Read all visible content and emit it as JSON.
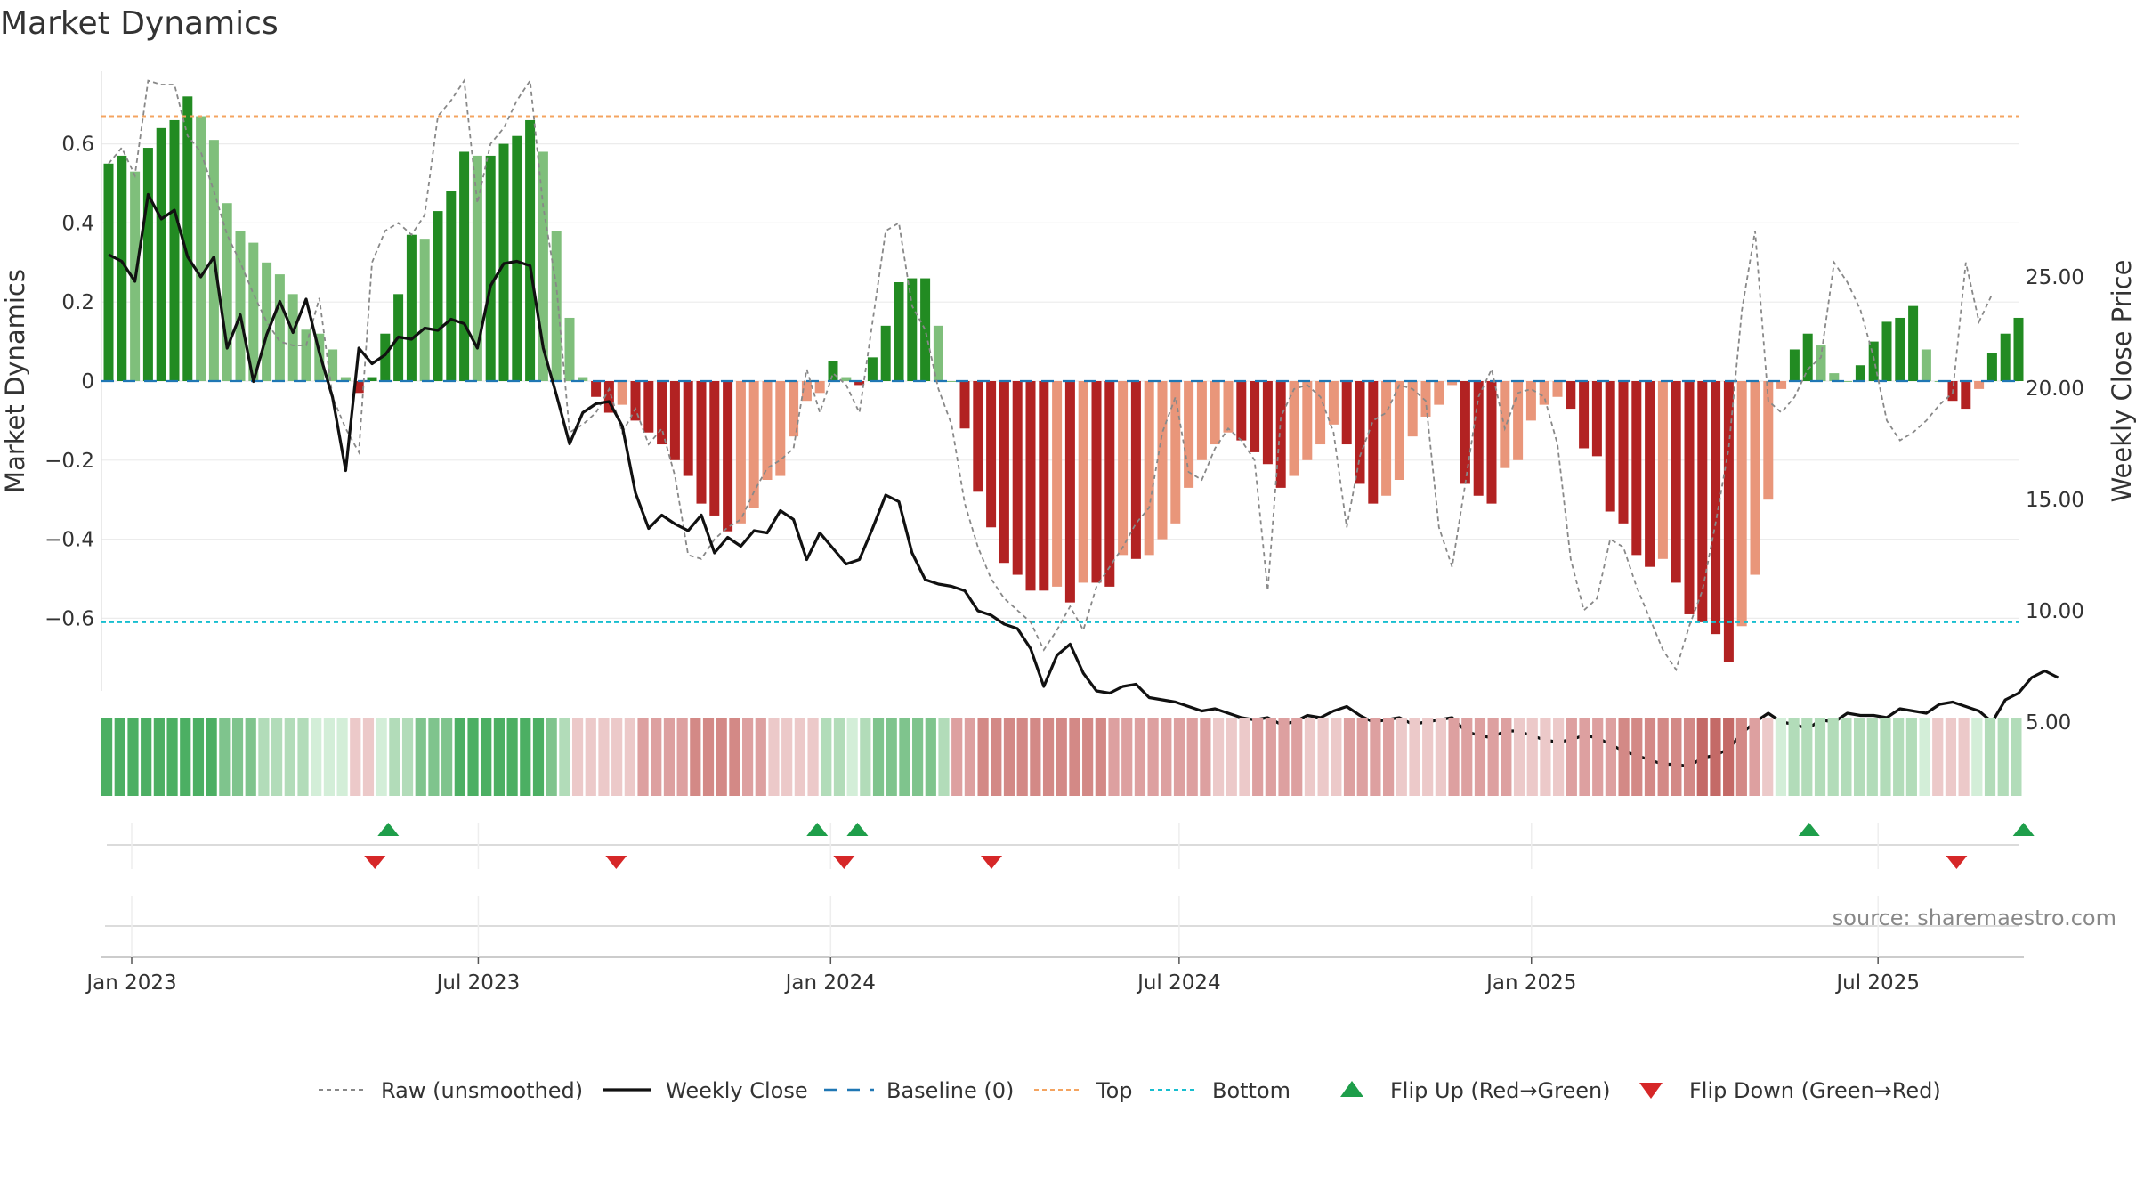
{
  "chart_data": {
    "type": "bar",
    "title": "Market Dynamics",
    "ylabel": "Market Dynamics",
    "y2label": "Weekly Close Price",
    "ylim": [
      -0.78,
      0.78
    ],
    "y2lim": [
      0,
      30
    ],
    "yticks": [
      {
        "v": 0.6,
        "t": "0.6"
      },
      {
        "v": 0.4,
        "t": "0.4"
      },
      {
        "v": 0.2,
        "t": "0.2"
      },
      {
        "v": 0,
        "t": "0"
      },
      {
        "v": -0.2,
        "t": "−0.2"
      },
      {
        "v": -0.4,
        "t": "−0.4"
      },
      {
        "v": -0.6,
        "t": "−0.6"
      }
    ],
    "y2ticks": [
      {
        "v": 25,
        "t": "25.00"
      },
      {
        "v": 20,
        "t": "20.00"
      },
      {
        "v": 15,
        "t": "15.00"
      },
      {
        "v": 10,
        "t": "10.00"
      },
      {
        "v": 5,
        "t": "5.00"
      }
    ],
    "xticks": [
      {
        "date": "2023-01-01",
        "t": "Jan 2023"
      },
      {
        "date": "2023-07-01",
        "t": "Jul 2023"
      },
      {
        "date": "2024-01-01",
        "t": "Jan 2024"
      },
      {
        "date": "2024-07-01",
        "t": "Jul 2024"
      },
      {
        "date": "2025-01-01",
        "t": "Jan 2025"
      },
      {
        "date": "2025-07-01",
        "t": "Jul 2025"
      }
    ],
    "top_line": 0.67,
    "bottom_line": -0.61,
    "baseline": 0,
    "start_date": "2022-12-19",
    "dynamics": [
      0.55,
      0.57,
      0.53,
      0.59,
      0.64,
      0.66,
      0.72,
      0.67,
      0.61,
      0.45,
      0.38,
      0.35,
      0.3,
      0.27,
      0.22,
      0.13,
      0.12,
      0.08,
      0.01,
      -0.03,
      0.01,
      0.12,
      0.22,
      0.37,
      0.36,
      0.43,
      0.48,
      0.58,
      0.57,
      0.57,
      0.6,
      0.62,
      0.66,
      0.58,
      0.38,
      0.16,
      0.01,
      -0.04,
      -0.08,
      -0.06,
      -0.1,
      -0.13,
      -0.16,
      -0.2,
      -0.24,
      -0.31,
      -0.34,
      -0.38,
      -0.36,
      -0.32,
      -0.25,
      -0.24,
      -0.14,
      -0.05,
      -0.03,
      0.05,
      0.01,
      -0.01,
      0.06,
      0.14,
      0.25,
      0.26,
      0.26,
      0.14,
      0.0,
      -0.12,
      -0.28,
      -0.37,
      -0.46,
      -0.49,
      -0.53,
      -0.53,
      -0.52,
      -0.56,
      -0.51,
      -0.51,
      -0.52,
      -0.44,
      -0.45,
      -0.44,
      -0.4,
      -0.36,
      -0.27,
      -0.2,
      -0.16,
      -0.13,
      -0.15,
      -0.18,
      -0.21,
      -0.27,
      -0.24,
      -0.2,
      -0.16,
      -0.11,
      -0.16,
      -0.26,
      -0.31,
      -0.29,
      -0.25,
      -0.14,
      -0.09,
      -0.06,
      -0.01,
      -0.26,
      -0.29,
      -0.31,
      -0.22,
      -0.2,
      -0.1,
      -0.06,
      -0.04,
      -0.07,
      -0.17,
      -0.19,
      -0.33,
      -0.36,
      -0.44,
      -0.47,
      -0.45,
      -0.51,
      -0.59,
      -0.61,
      -0.64,
      -0.71,
      -0.62,
      -0.49,
      -0.3,
      -0.02,
      0.08,
      0.12,
      0.09,
      0.02,
      0.0,
      0.04,
      0.1,
      0.15,
      0.16,
      0.19,
      0.08,
      0.0,
      -0.05,
      -0.07,
      -0.02,
      0.07,
      0.12,
      0.16
    ],
    "raw": [
      0.55,
      0.59,
      0.52,
      0.76,
      0.75,
      0.75,
      0.62,
      0.58,
      0.48,
      0.37,
      0.3,
      0.22,
      0.15,
      0.1,
      0.09,
      0.09,
      0.21,
      -0.04,
      -0.12,
      -0.18,
      0.3,
      0.38,
      0.4,
      0.37,
      0.42,
      0.67,
      0.71,
      0.76,
      0.45,
      0.6,
      0.64,
      0.71,
      0.76,
      0.44,
      0.24,
      -0.13,
      -0.11,
      -0.08,
      -0.02,
      -0.13,
      -0.07,
      -0.16,
      -0.12,
      -0.24,
      -0.44,
      -0.45,
      -0.4,
      -0.37,
      -0.35,
      -0.28,
      -0.22,
      -0.2,
      -0.17,
      0.03,
      -0.08,
      0.02,
      -0.01,
      -0.08,
      0.15,
      0.38,
      0.4,
      0.19,
      0.13,
      -0.02,
      -0.11,
      -0.31,
      -0.42,
      -0.5,
      -0.55,
      -0.58,
      -0.61,
      -0.68,
      -0.63,
      -0.57,
      -0.63,
      -0.52,
      -0.47,
      -0.42,
      -0.36,
      -0.32,
      -0.13,
      -0.04,
      -0.23,
      -0.25,
      -0.17,
      -0.12,
      -0.15,
      -0.2,
      -0.53,
      -0.09,
      -0.02,
      -0.01,
      -0.04,
      -0.13,
      -0.37,
      -0.19,
      -0.1,
      -0.08,
      -0.01,
      -0.02,
      -0.05,
      -0.37,
      -0.47,
      -0.26,
      -0.04,
      0.03,
      -0.12,
      -0.03,
      -0.02,
      -0.04,
      -0.16,
      -0.45,
      -0.58,
      -0.55,
      -0.4,
      -0.42,
      -0.52,
      -0.6,
      -0.68,
      -0.73,
      -0.62,
      -0.53,
      -0.36,
      -0.17,
      0.18,
      0.38,
      -0.05,
      -0.08,
      -0.04,
      0.03,
      0.06,
      0.3,
      0.25,
      0.18,
      0.06,
      -0.1,
      -0.15,
      -0.13,
      -0.1,
      -0.06,
      -0.03,
      0.3,
      0.15,
      0.22
    ],
    "close": [
      26.0,
      25.7,
      24.8,
      28.7,
      27.6,
      28.0,
      25.9,
      25.0,
      25.9,
      21.8,
      23.3,
      20.3,
      22.4,
      23.9,
      22.5,
      24.0,
      21.6,
      19.6,
      16.3,
      21.8,
      21.1,
      21.5,
      22.3,
      22.2,
      22.7,
      22.6,
      23.1,
      22.9,
      21.8,
      24.6,
      25.6,
      25.7,
      25.5,
      21.8,
      19.7,
      17.5,
      18.9,
      19.3,
      19.4,
      18.3,
      15.3,
      13.7,
      14.3,
      13.9,
      13.6,
      14.3,
      12.6,
      13.3,
      12.9,
      13.6,
      13.5,
      14.5,
      14.1,
      12.3,
      13.5,
      12.8,
      12.1,
      12.3,
      13.7,
      15.2,
      14.9,
      12.6,
      11.4,
      11.2,
      11.1,
      10.9,
      10.0,
      9.8,
      9.4,
      9.2,
      8.3,
      6.6,
      8.0,
      8.5,
      7.2,
      6.4,
      6.3,
      6.6,
      6.7,
      6.1,
      6.0,
      5.9,
      5.7,
      5.5,
      5.6,
      5.4,
      5.2,
      5.1,
      5.2,
      4.9,
      5.0,
      5.3,
      5.2,
      5.5,
      5.7,
      5.3,
      5.0,
      5.1,
      5.2,
      4.9,
      5.0,
      5.1,
      5.2,
      4.6,
      4.4,
      4.3,
      4.6,
      4.6,
      4.4,
      4.2,
      4.1,
      4.2,
      4.4,
      4.3,
      4.0,
      3.7,
      3.5,
      3.3,
      3.1,
      3.1,
      3.0,
      3.4,
      3.5,
      3.8,
      4.5,
      5.0,
      5.4,
      5.0,
      4.9,
      4.7,
      5.1,
      5.0,
      5.4,
      5.3,
      5.3,
      5.2,
      5.6,
      5.5,
      5.4,
      5.8,
      5.9,
      5.7,
      5.5,
      5.0,
      6.0,
      6.3,
      7.0,
      7.3,
      7.0
    ],
    "signal_strip": [
      3,
      3,
      3,
      3,
      3,
      3,
      3,
      3,
      3,
      2,
      2,
      2,
      1,
      1,
      1,
      1,
      0,
      0,
      0,
      -1,
      -1,
      0,
      1,
      1,
      2,
      2,
      2,
      3,
      3,
      3,
      3,
      3,
      3,
      3,
      2,
      1,
      -1,
      -1,
      -1,
      -1,
      -1,
      -2,
      -2,
      -2,
      -2,
      -3,
      -3,
      -3,
      -3,
      -2,
      -2,
      -1,
      -1,
      -1,
      -1,
      1,
      1,
      0,
      1,
      2,
      2,
      2,
      2,
      2,
      1,
      -2,
      -2,
      -3,
      -3,
      -3,
      -3,
      -3,
      -3,
      -3,
      -3,
      -3,
      -3,
      -2,
      -2,
      -2,
      -2,
      -2,
      -2,
      -2,
      -2,
      -1,
      -1,
      -1,
      -2,
      -2,
      -2,
      -2,
      -1,
      -1,
      -1,
      -2,
      -2,
      -2,
      -2,
      -1,
      -1,
      -1,
      -1,
      -2,
      -2,
      -2,
      -2,
      -2,
      -1,
      -1,
      -1,
      -1,
      -2,
      -2,
      -2,
      -2,
      -3,
      -3,
      -3,
      -3,
      -3,
      -3,
      -4,
      -4,
      -4,
      -3,
      -2,
      -1,
      0,
      1,
      1,
      1,
      1,
      1,
      1,
      1,
      1,
      1,
      1,
      0,
      -1,
      -1,
      -1,
      0,
      1,
      1,
      1
    ],
    "flip_up_dates": [
      "2023-05-15",
      "2023-12-25",
      "2024-01-15",
      "2025-05-26",
      "2025-09-15"
    ],
    "flip_down_dates": [
      "2023-05-08",
      "2023-09-11",
      "2024-01-08",
      "2024-03-25",
      "2025-08-11"
    ],
    "legend": [
      {
        "label": "Raw (unsmoothed)",
        "style": "dashed-gray"
      },
      {
        "label": "Weekly Close",
        "style": "solid-black"
      },
      {
        "label": "Baseline (0)",
        "style": "dashed-blue"
      },
      {
        "label": "Top",
        "style": "dotted-orange"
      },
      {
        "label": "Bottom",
        "style": "dotted-cyan"
      },
      {
        "label": "Flip Up (Red→Green)",
        "style": "triangle-up-green"
      },
      {
        "label": "Flip Down (Green→Red)",
        "style": "triangle-down-red"
      }
    ],
    "source": "source: sharemaestro.com",
    "colors": {
      "pos_strong": "#228b22",
      "pos_weak": "#7fbf7b",
      "neg_strong": "#b22222",
      "neg_weak": "#e9967a",
      "raw": "#888888",
      "close": "#111111",
      "baseline": "#1f77b4",
      "top": "#f4a460",
      "bottom": "#17becf",
      "flip_up": "#1e9e4a",
      "flip_down": "#d62728"
    }
  }
}
